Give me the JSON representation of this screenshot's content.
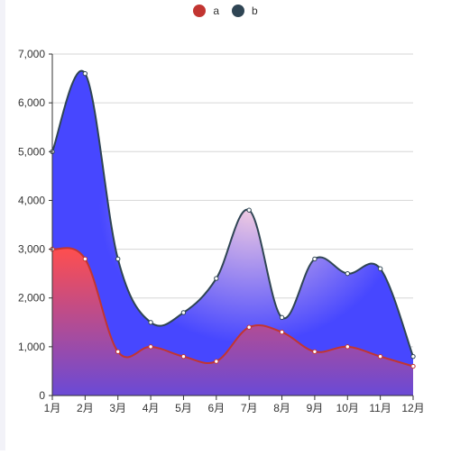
{
  "chart_data": {
    "type": "area",
    "categories": [
      "1月",
      "2月",
      "3月",
      "4月",
      "5月",
      "6月",
      "7月",
      "8月",
      "9月",
      "10月",
      "11月",
      "12月"
    ],
    "series": [
      {
        "name": "a",
        "values": [
          3000,
          2800,
          900,
          1000,
          800,
          700,
          1400,
          1300,
          900,
          1000,
          800,
          600
        ],
        "color": "#c23531"
      },
      {
        "name": "b",
        "values": [
          5000,
          6600,
          2800,
          1500,
          1700,
          2400,
          3800,
          1600,
          2800,
          2500,
          2600,
          800
        ],
        "color": "#2f4554"
      }
    ],
    "ylim": [
      0,
      7000
    ],
    "yticks": [
      "0",
      "1,000",
      "2,000",
      "3,000",
      "4,000",
      "5,000",
      "6,000",
      "7,000"
    ],
    "ytick_values": [
      0,
      1000,
      2000,
      3000,
      4000,
      5000,
      6000,
      7000
    ],
    "smooth": true,
    "grid": true,
    "legend_position": "top-center",
    "title": "",
    "xlabel": "",
    "ylabel": "",
    "fill_colors": {
      "b_base": "#4747ff",
      "b_highlight": "#f3cde1",
      "a_top": "#ff4e4e",
      "a_bottom": "#6a4ad6"
    }
  }
}
